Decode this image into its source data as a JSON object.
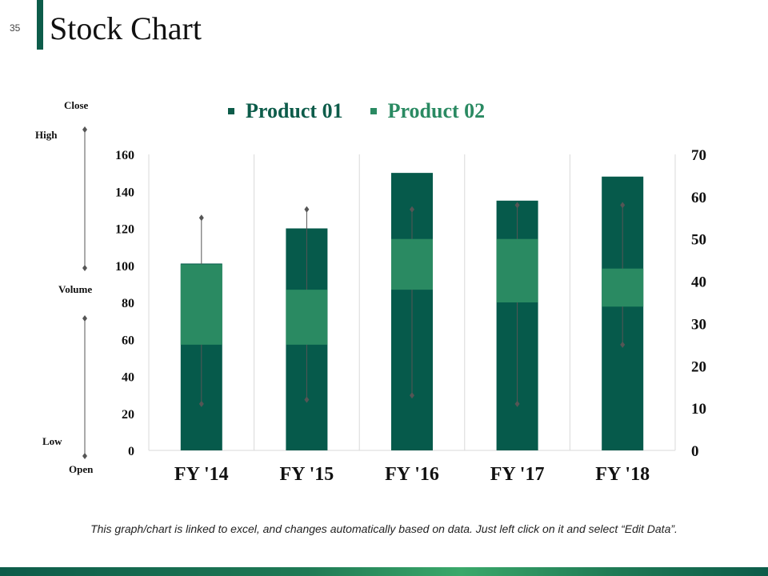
{
  "slide_number": "35",
  "title": "Stock Chart",
  "side_labels": {
    "close": "Close",
    "high": "High",
    "volume": "Volume",
    "low": "Low",
    "open": "Open"
  },
  "footer_note": "This graph/chart is linked to excel, and changes automatically based on data. Just left click on it and select “Edit Data”.",
  "colors": {
    "volume": "#065a4b",
    "up_box": "#2a8a62",
    "down_box": "#ffffff",
    "accent": "#0d5c4a",
    "grid": "#d9d9d9",
    "whisker": "#555555",
    "legend_02": "#2a8a62"
  },
  "chart_data": {
    "type": "bar",
    "categories": [
      "FY '14",
      "FY '15",
      "FY '16",
      "FY '17",
      "FY '18"
    ],
    "legend": [
      "Product 01",
      "Product 02"
    ],
    "y_left": {
      "range": [
        0,
        160
      ],
      "ticks": [
        "0",
        "20",
        "40",
        "60",
        "80",
        "100",
        "120",
        "140",
        "160"
      ]
    },
    "y_right": {
      "range": [
        0,
        70
      ],
      "ticks": [
        "0",
        "10",
        "20",
        "30",
        "40",
        "50",
        "60",
        "70"
      ]
    },
    "volume": [
      101,
      120,
      150,
      135,
      148
    ],
    "stock": [
      {
        "open": 25,
        "high": 55,
        "low": 11,
        "close": 44
      },
      {
        "open": 25,
        "high": 57,
        "low": 12,
        "close": 38
      },
      {
        "open": 38,
        "high": 57,
        "low": 13,
        "close": 50
      },
      {
        "open": 35,
        "high": 58,
        "low": 11,
        "close": 50
      },
      {
        "open": 34,
        "high": 58,
        "low": 25,
        "close": 43
      }
    ]
  }
}
